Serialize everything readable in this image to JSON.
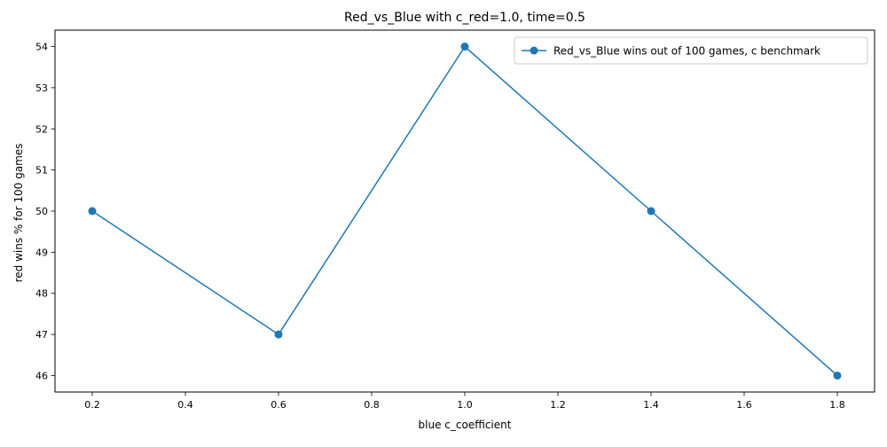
{
  "chart_data": {
    "type": "line",
    "title": "Red_vs_Blue with c_red=1.0, time=0.5",
    "xlabel": "blue c_coefficient",
    "ylabel": "red wins % for 100 games",
    "xlim": [
      0.12,
      1.88
    ],
    "ylim": [
      45.6,
      54.4
    ],
    "x_ticks": [
      0.2,
      0.4,
      0.6,
      0.8,
      1.0,
      1.2,
      1.4,
      1.6,
      1.8
    ],
    "x_tick_labels": [
      "0.2",
      "0.4",
      "0.6",
      "0.8",
      "1.0",
      "1.2",
      "1.4",
      "1.6",
      "1.8"
    ],
    "y_ticks": [
      46,
      47,
      48,
      49,
      50,
      51,
      52,
      53,
      54
    ],
    "y_tick_labels": [
      "46",
      "47",
      "48",
      "49",
      "50",
      "51",
      "52",
      "53",
      "54"
    ],
    "grid": false,
    "legend_position": "top-right",
    "series": [
      {
        "name": "Red_vs_Blue wins out of 100 games, c benchmark",
        "color": "#1f77b4",
        "marker": "circle",
        "x": [
          0.2,
          0.6,
          1.0,
          1.4,
          1.8
        ],
        "y": [
          50,
          47,
          54,
          50,
          46
        ]
      }
    ]
  }
}
